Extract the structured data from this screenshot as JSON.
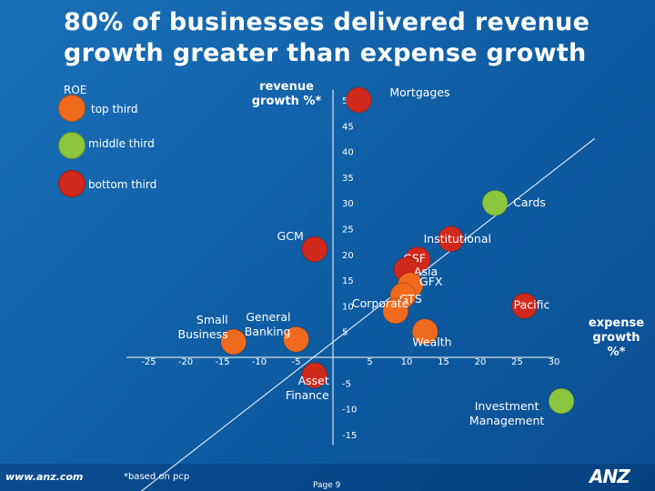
{
  "title": "80% of businesses delivered revenue growth greater than expense growth",
  "legend": {
    "heading": "ROE",
    "items": [
      {
        "label": "top third",
        "color": "#f06a1e"
      },
      {
        "label": "middle third",
        "color": "#8cc63f"
      },
      {
        "label": "bottom third",
        "color": "#d0281a"
      }
    ]
  },
  "footer": {
    "url": "www.anz.com",
    "footnote": "*based on pcp",
    "page": "Page 9",
    "logo": "ANZ"
  },
  "chart_data": {
    "type": "scatter",
    "xlabel": "expense growth %*",
    "ylabel": "revenue growth %*",
    "xlim": [
      -30,
      35
    ],
    "ylim": [
      -20,
      52
    ],
    "x_ticks": [
      -25,
      -20,
      -15,
      -10,
      -5,
      5,
      10,
      15,
      20,
      25,
      30
    ],
    "y_ticks": [
      50,
      45,
      40,
      35,
      30,
      25,
      20,
      15,
      10,
      5,
      -5,
      -10,
      -15
    ],
    "reference_line": "y = x",
    "points": [
      {
        "label": "Mortgages",
        "x": 3.5,
        "y": 50,
        "roe": "bottom third"
      },
      {
        "label": "Cards",
        "x": 22,
        "y": 30,
        "roe": "middle third"
      },
      {
        "label": "Institutional",
        "x": 16,
        "y": 23,
        "roe": "bottom third"
      },
      {
        "label": "GCM",
        "x": -2.5,
        "y": 21,
        "roe": "bottom third"
      },
      {
        "label": "GSF",
        "x": 11.5,
        "y": 19,
        "roe": "bottom third"
      },
      {
        "label": "Asia",
        "x": 10,
        "y": 17,
        "roe": "bottom third"
      },
      {
        "label": "GFX",
        "x": 10.5,
        "y": 14,
        "roe": "top third"
      },
      {
        "label": "GTS",
        "x": 9.5,
        "y": 12,
        "roe": "top third"
      },
      {
        "label": "Pacific",
        "x": 26,
        "y": 10,
        "roe": "bottom third"
      },
      {
        "label": "Corporate",
        "x": 8.5,
        "y": 9,
        "roe": "top third"
      },
      {
        "label": "Wealth",
        "x": 12.5,
        "y": 5,
        "roe": "top third"
      },
      {
        "label": "General Banking",
        "x": -5,
        "y": 3.5,
        "roe": "top third"
      },
      {
        "label": "Small Business",
        "x": -13.5,
        "y": 3,
        "roe": "top third"
      },
      {
        "label": "Asset Finance",
        "x": -2.5,
        "y": -3.5,
        "roe": "bottom third"
      },
      {
        "label": "Investment Management",
        "x": 31,
        "y": -8.5,
        "roe": "middle third"
      }
    ]
  }
}
